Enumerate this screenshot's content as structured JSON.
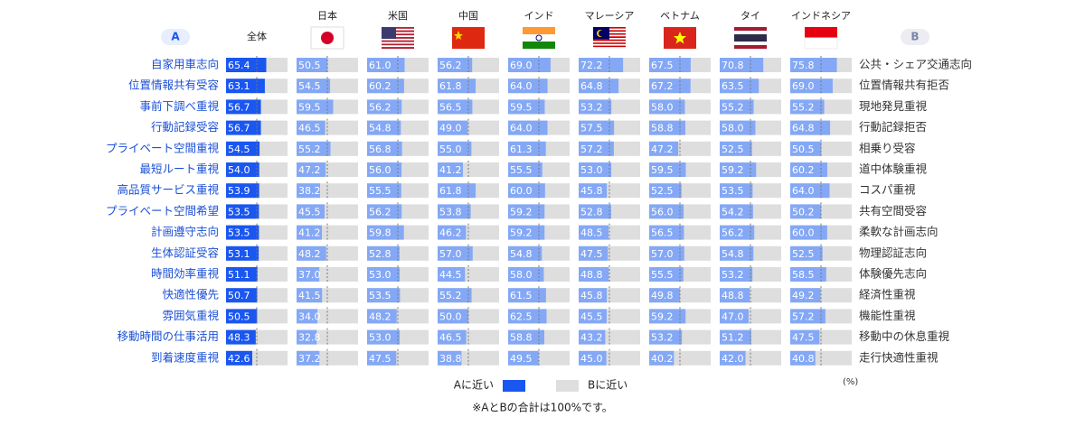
{
  "chart_data": {
    "type": "bar",
    "a_header": "A",
    "b_header": "B",
    "categories": [
      "自家用車志向",
      "位置情報共有受容",
      "事前下調べ重視",
      "行動記録受容",
      "プライベート空間重視",
      "最短ルート重視",
      "高品質サービス重視",
      "プライベート空間希望",
      "計画遵守志向",
      "生体認証受容",
      "時間効率重視",
      "快適性優先",
      "雰囲気重視",
      "移動時間の仕事活用",
      "到着速度重視"
    ],
    "b_labels": [
      "公共・シェア交通志向",
      "位置情報共有拒否",
      "現地発見重視",
      "行動記録拒否",
      "相乗り受容",
      "道中体験重視",
      "コスパ重視",
      "共有空間受容",
      "柔軟な計画志向",
      "物理認証志向",
      "体験優先志向",
      "経済性重視",
      "機能性重視",
      "移動中の休息重視",
      "走行快適性重視"
    ],
    "xlim": [
      0,
      100
    ],
    "reference": 50,
    "track_color": "#dedede",
    "series": [
      {
        "name": "全体",
        "color": "#1a56f0",
        "values": [
          65.4,
          63.1,
          56.7,
          56.7,
          54.5,
          54.0,
          53.9,
          53.5,
          53.5,
          53.1,
          51.1,
          50.7,
          50.5,
          48.3,
          42.6
        ],
        "value_labels": [
          "65.4",
          "63.1",
          "56.7",
          "56.7",
          "54.5",
          "54.0",
          "53.9",
          "53.5",
          "53.5",
          "53.1",
          "51.1",
          "50.7",
          "50.5",
          "48.3",
          "42.6"
        ]
      },
      {
        "name": "日本",
        "color": "#84a8f5",
        "values": [
          50.5,
          54.5,
          59.5,
          46.5,
          55.2,
          47.2,
          38.2,
          45.5,
          41.2,
          48.2,
          37.0,
          41.5,
          34.0,
          32.8,
          37.2
        ],
        "value_labels": [
          "50.5",
          "54.5",
          "59.5",
          "46.5",
          "55.2",
          "47.2",
          "38.2",
          "45.5",
          "41.2",
          "48.2",
          "37.0",
          "41.5",
          "34.0",
          "32.8",
          "37.2"
        ]
      },
      {
        "name": "米国",
        "color": "#84a8f5",
        "values": [
          61.0,
          60.2,
          56.2,
          54.8,
          56.8,
          56.0,
          55.5,
          56.2,
          59.8,
          52.8,
          53.0,
          53.5,
          48.2,
          53.0,
          47.5
        ],
        "value_labels": [
          "61.0",
          "60.2",
          "56.2",
          "54.8",
          "56.8",
          "56.0",
          "55.5",
          "56.2",
          "59.8",
          "52.8",
          "53.0",
          "53.5",
          "48.2",
          "53.0",
          "47.5"
        ]
      },
      {
        "name": "中国",
        "color": "#84a8f5",
        "values": [
          56.2,
          61.8,
          56.5,
          49.0,
          55.0,
          41.2,
          61.8,
          53.8,
          46.2,
          57.0,
          44.5,
          55.2,
          50.0,
          46.5,
          38.8
        ],
        "value_labels": [
          "56.2",
          "61.8",
          "56.5",
          "49.0",
          "55.0",
          "41.2",
          "61.8",
          "53.8",
          "46.2",
          "57.0",
          "44.5",
          "55.2",
          "50.0",
          "46.5",
          "38.8"
        ]
      },
      {
        "name": "インド",
        "color": "#84a8f5",
        "values": [
          69.0,
          64.0,
          59.5,
          64.0,
          61.3,
          55.5,
          60.0,
          59.2,
          59.2,
          54.8,
          58.0,
          61.5,
          62.5,
          58.8,
          49.5
        ],
        "value_labels": [
          "69.0",
          "64.0",
          "59.5",
          "64.0",
          "61.3",
          "55.5",
          "60.0",
          "59.2",
          "59.2",
          "54.8",
          "58.0",
          "61.5",
          "62.5",
          "58.8",
          "49.5"
        ]
      },
      {
        "name": "マレーシア",
        "color": "#84a8f5",
        "values": [
          72.2,
          64.8,
          53.2,
          57.5,
          57.2,
          53.0,
          45.8,
          52.8,
          48.5,
          47.5,
          48.8,
          45.8,
          45.5,
          43.2,
          45.0
        ],
        "value_labels": [
          "72.2",
          "64.8",
          "53.2",
          "57.5",
          "57.2",
          "53.0",
          "45.8",
          "52.8",
          "48.5",
          "47.5",
          "48.8",
          "45.8",
          "45.5",
          "43.2",
          "45.0"
        ]
      },
      {
        "name": "ベトナム",
        "color": "#84a8f5",
        "values": [
          67.5,
          67.2,
          58.0,
          58.8,
          47.2,
          59.5,
          52.5,
          56.0,
          56.5,
          57.0,
          55.5,
          49.8,
          59.2,
          53.2,
          40.2
        ],
        "value_labels": [
          "67.5",
          "67.2",
          "58.0",
          "58.8",
          "47.2",
          "59.5",
          "52.5",
          "56.0",
          "56.5",
          "57.0",
          "55.5",
          "49.8",
          "59.2",
          "53.2",
          "40.2"
        ]
      },
      {
        "name": "タイ",
        "color": "#84a8f5",
        "values": [
          70.8,
          63.5,
          55.2,
          58.0,
          52.5,
          59.2,
          53.5,
          54.2,
          56.2,
          54.8,
          53.2,
          48.8,
          47.0,
          51.2,
          42.0
        ],
        "value_labels": [
          "70.8",
          "63.5",
          "55.2",
          "58.0",
          "52.5",
          "59.2",
          "53.5",
          "54.2",
          "56.2",
          "54.8",
          "53.2",
          "48.8",
          "47.0",
          "51.2",
          "42.0"
        ]
      },
      {
        "name": "インドネシア",
        "color": "#84a8f5",
        "values": [
          75.8,
          69.0,
          55.2,
          64.8,
          50.5,
          60.2,
          64.0,
          50.2,
          60.0,
          52.5,
          58.5,
          49.2,
          57.2,
          47.5,
          40.8
        ],
        "value_labels": [
          "75.8",
          "69.0",
          "55.2",
          "64.8",
          "50.5",
          "60.2",
          "64.0",
          "50.2",
          "60.0",
          "52.5",
          "58.5",
          "49.2",
          "57.2",
          "47.5",
          "40.8"
        ]
      }
    ],
    "legend": {
      "a_label": "Aに近い",
      "a_color": "#1a56f0",
      "b_label": "Bに近い",
      "b_color": "#dedede"
    },
    "unit": "(%)",
    "note": "※AとBの合計は100%です。"
  }
}
